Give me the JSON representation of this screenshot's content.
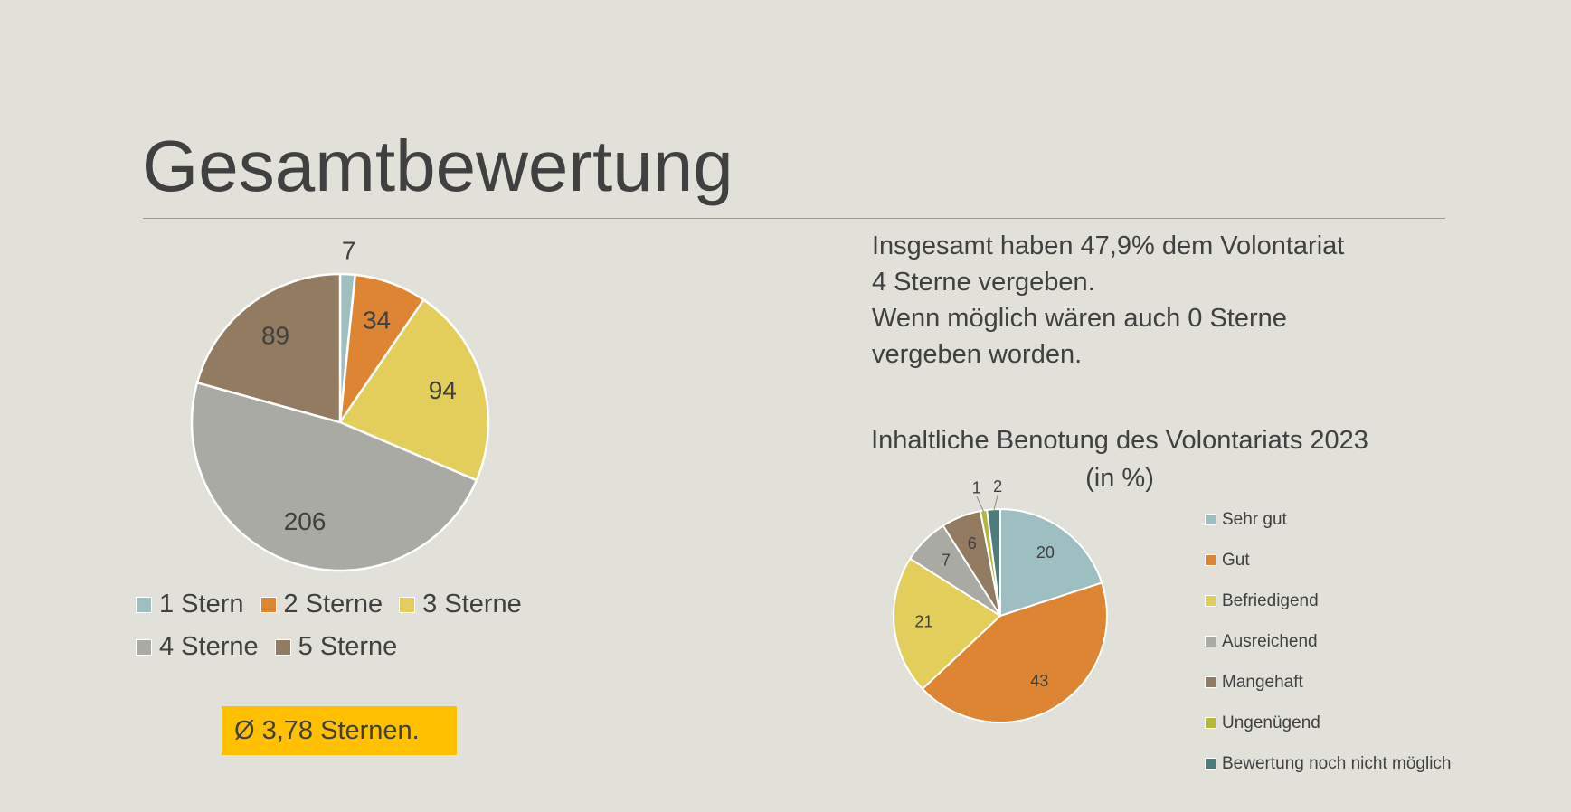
{
  "slide": {
    "title": "Gesamtbewertung",
    "summary_line1": "Insgesamt haben 47,9% dem Volontariat",
    "summary_line2": "4 Sterne vergeben.",
    "summary_line3": "Wenn möglich wären auch 0 Sterne",
    "summary_line4": "vergeben worden.",
    "average_badge": "Ø 3,78 Sternen."
  },
  "chart_data": [
    {
      "type": "pie",
      "title": "",
      "categories": [
        "1 Stern",
        "2 Sterne",
        "3 Sterne",
        "4 Sterne",
        "5 Sterne"
      ],
      "values": [
        7,
        34,
        94,
        206,
        89
      ],
      "colors": [
        "#9dbfc1",
        "#dd8533",
        "#e3ce5c",
        "#a9aaa3",
        "#927b61"
      ],
      "legend": "bottom"
    },
    {
      "type": "pie",
      "title": "Inhaltliche Benotung des Volontariats 2023 (in %)",
      "categories": [
        "Sehr gut",
        "Gut",
        "Befriedigend",
        "Ausreichend",
        "Mangehaft",
        "Ungenügend",
        "Bewertung noch nicht möglich"
      ],
      "values": [
        20,
        43,
        21,
        7,
        6,
        1,
        2
      ],
      "colors": [
        "#9dbfc1",
        "#dd8533",
        "#e3ce5c",
        "#a9aaa3",
        "#927b61",
        "#b3b83b",
        "#4d7c7c"
      ],
      "legend": "right"
    }
  ]
}
